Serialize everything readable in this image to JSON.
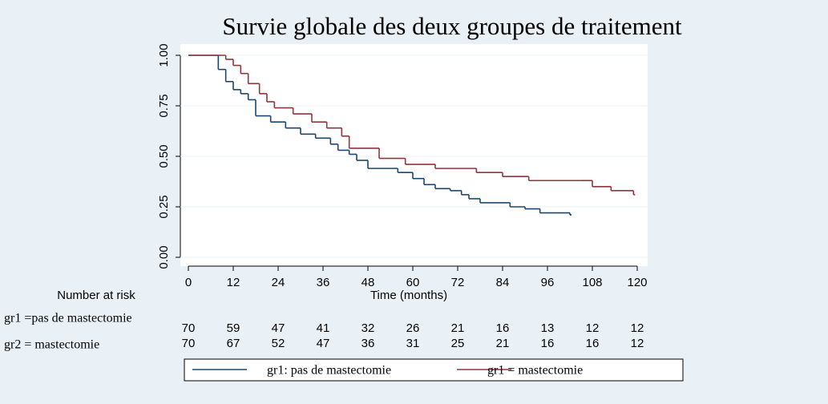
{
  "chart_data": {
    "type": "step",
    "title": "Survie globale des deux groupes de traitement",
    "x_label": "Time (months)",
    "xlim": [
      0,
      120
    ],
    "xticks": [
      0,
      12,
      24,
      36,
      48,
      60,
      72,
      84,
      96,
      108,
      120
    ],
    "ylim": [
      0,
      1
    ],
    "yticks": [
      {
        "value": 0,
        "label": "0.00"
      },
      {
        "value": 0.25,
        "label": "0.25"
      },
      {
        "value": 0.5,
        "label": "0.50"
      },
      {
        "value": 0.75,
        "label": "0.75"
      },
      {
        "value": 1,
        "label": "1.00"
      }
    ],
    "grid": true,
    "series": [
      {
        "name": "gr1: pas de mastectomie",
        "color": "#1a476f",
        "x": [
          0,
          8,
          10,
          12,
          14,
          16,
          18,
          22,
          26,
          30,
          34,
          38,
          40,
          43,
          45,
          48,
          56,
          60,
          63,
          66,
          70,
          73,
          75,
          78,
          86,
          90,
          94,
          102
        ],
        "values": [
          1.0,
          0.93,
          0.87,
          0.83,
          0.81,
          0.78,
          0.7,
          0.67,
          0.64,
          0.61,
          0.59,
          0.56,
          0.53,
          0.51,
          0.48,
          0.44,
          0.42,
          0.39,
          0.36,
          0.34,
          0.33,
          0.31,
          0.29,
          0.27,
          0.25,
          0.24,
          0.22,
          0.21
        ]
      },
      {
        "name": "gr1 = mastectomie",
        "color": "#90353b",
        "x": [
          0,
          10,
          12,
          14,
          16,
          19,
          21,
          23,
          28,
          33,
          37,
          41,
          43,
          51,
          58,
          66,
          77,
          84,
          91,
          105,
          108,
          113,
          119
        ],
        "values": [
          1.0,
          0.98,
          0.95,
          0.91,
          0.86,
          0.81,
          0.77,
          0.74,
          0.71,
          0.67,
          0.64,
          0.6,
          0.54,
          0.49,
          0.46,
          0.44,
          0.42,
          0.4,
          0.38,
          0.38,
          0.35,
          0.33,
          0.31
        ]
      }
    ],
    "risk_table": {
      "title": "Number at risk",
      "rows": [
        {
          "label": "gr1 =pas de mastectomie",
          "values": [
            70,
            59,
            47,
            41,
            32,
            26,
            21,
            16,
            13,
            12,
            12
          ]
        },
        {
          "label": "gr2 = mastectomie",
          "values": [
            70,
            67,
            52,
            47,
            36,
            31,
            25,
            21,
            16,
            16,
            12
          ]
        }
      ]
    }
  }
}
